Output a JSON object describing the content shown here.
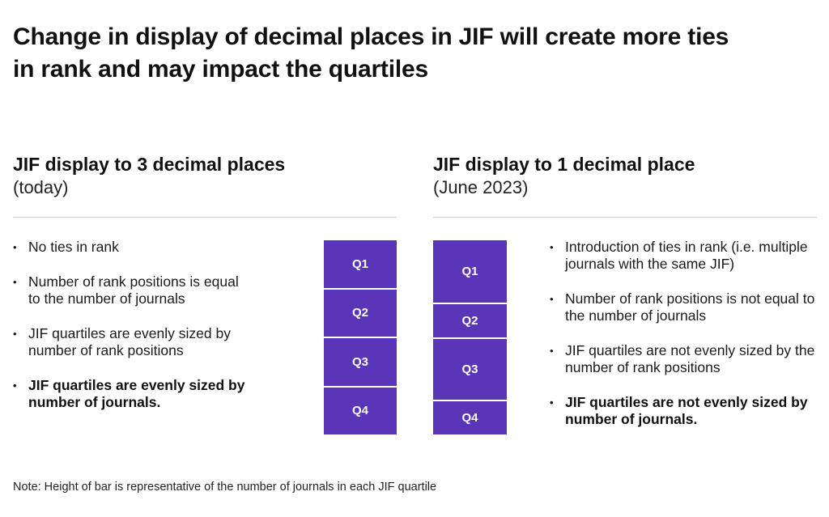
{
  "title": "Change in display of decimal places in JIF will create more ties in rank and may impact the quartiles",
  "left": {
    "heading": "JIF display to 3 decimal places",
    "subheading": "(today)",
    "bullets": [
      {
        "text": "No ties in rank",
        "bold": false
      },
      {
        "text": "Number of rank positions is equal to the number of journals",
        "bold": false
      },
      {
        "text": "JIF quartiles are evenly sized by number of rank positions",
        "bold": false
      },
      {
        "text": "JIF quartiles are evenly sized by number of journals.",
        "bold": true
      }
    ]
  },
  "right": {
    "heading": "JIF display to 1 decimal place",
    "subheading": "(June 2023)",
    "bullets": [
      {
        "text": "Introduction of ties in rank (i.e. multiple journals with the same JIF)",
        "bold": false
      },
      {
        "text": "Number of rank positions is not equal to the number of journals",
        "bold": false
      },
      {
        "text": "JIF quartiles are not evenly sized by the number of rank positions",
        "bold": false
      },
      {
        "text": "JIF quartiles are not evenly sized by number of journals.",
        "bold": true
      }
    ]
  },
  "bar_color": "#5a35b8",
  "chart_data": [
    {
      "type": "bar",
      "stacked": true,
      "categories": [
        "Q1",
        "Q2",
        "Q3",
        "Q4"
      ],
      "values": [
        60,
        60,
        60,
        60
      ]
    },
    {
      "type": "bar",
      "stacked": true,
      "categories": [
        "Q1",
        "Q2",
        "Q3",
        "Q4"
      ],
      "values": [
        79,
        42,
        77,
        42
      ]
    }
  ],
  "note": "Note: Height of bar is representative of the number of journals in each JIF quartile"
}
